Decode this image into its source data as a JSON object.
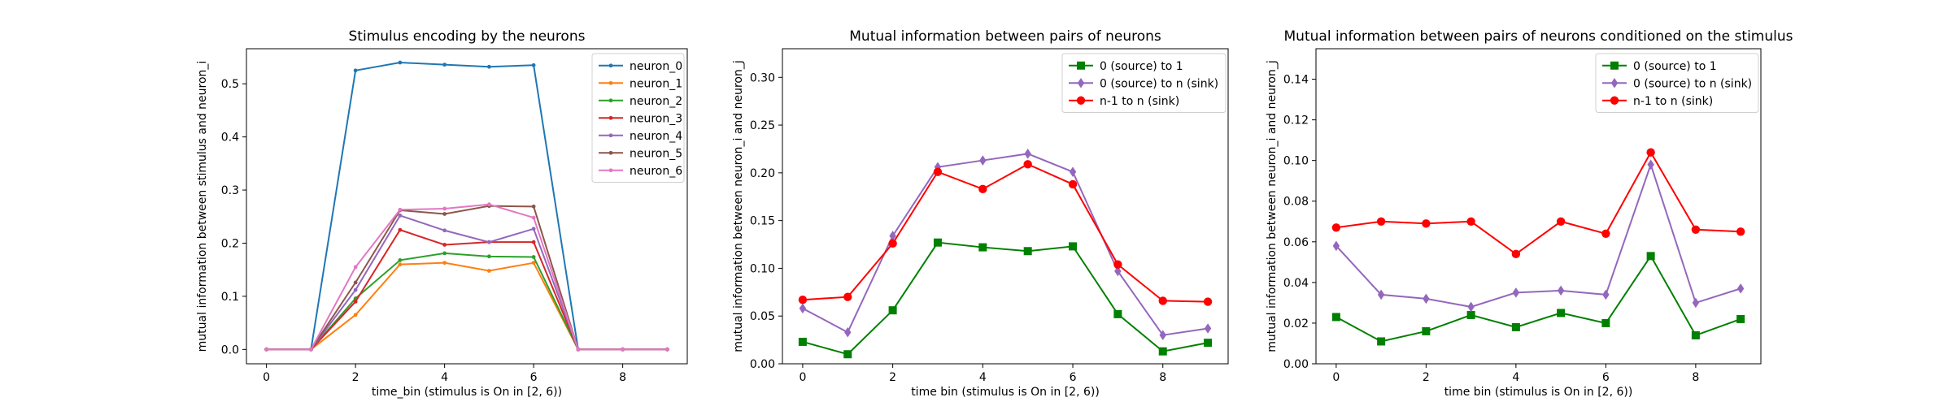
{
  "chart_data": [
    {
      "type": "line",
      "title": "Stimulus encoding by the neurons",
      "xlabel": "time_bin (stimulus is On in [2, 6))",
      "ylabel": "mutual information between stimulus and neuron_i",
      "xlim": [
        -0.45,
        9.45
      ],
      "ylim": [
        -0.027,
        0.566
      ],
      "xticks": [
        0,
        2,
        4,
        6,
        8
      ],
      "yticks": [
        0.0,
        0.1,
        0.2,
        0.3,
        0.4,
        0.5
      ],
      "ytick_labels": [
        "0.0",
        "0.1",
        "0.2",
        "0.3",
        "0.4",
        "0.5"
      ],
      "x": [
        0,
        1,
        2,
        3,
        4,
        5,
        6,
        7,
        8,
        9
      ],
      "legend_position": "top-right",
      "series": [
        {
          "name": "neuron_0",
          "color": "#1f77b4",
          "marker": "dot",
          "values": [
            0.0,
            0.0,
            0.525,
            0.54,
            0.536,
            0.532,
            0.535,
            0.0,
            0.0,
            0.0
          ]
        },
        {
          "name": "neuron_1",
          "color": "#ff7f0e",
          "marker": "dot",
          "values": [
            0.0,
            0.0,
            0.065,
            0.16,
            0.163,
            0.148,
            0.163,
            0.0,
            0.0,
            0.0
          ]
        },
        {
          "name": "neuron_2",
          "color": "#2ca02c",
          "marker": "dot",
          "values": [
            0.0,
            0.0,
            0.096,
            0.168,
            0.181,
            0.175,
            0.174,
            0.0,
            0.0,
            0.0
          ]
        },
        {
          "name": "neuron_3",
          "color": "#d62728",
          "marker": "dot",
          "values": [
            0.0,
            0.0,
            0.09,
            0.225,
            0.197,
            0.202,
            0.202,
            0.0,
            0.0,
            0.0
          ]
        },
        {
          "name": "neuron_4",
          "color": "#9467bd",
          "marker": "dot",
          "values": [
            0.0,
            0.0,
            0.112,
            0.252,
            0.224,
            0.202,
            0.227,
            0.0,
            0.0,
            0.0
          ]
        },
        {
          "name": "neuron_5",
          "color": "#8c564b",
          "marker": "dot",
          "values": [
            0.0,
            0.0,
            0.126,
            0.262,
            0.255,
            0.27,
            0.269,
            0.0,
            0.0,
            0.0
          ]
        },
        {
          "name": "neuron_6",
          "color": "#e377c2",
          "marker": "dot",
          "values": [
            0.0,
            0.0,
            0.155,
            0.263,
            0.265,
            0.273,
            0.248,
            0.0,
            0.0,
            0.0
          ]
        }
      ]
    },
    {
      "type": "line",
      "title": "Mutual information between pairs of neurons",
      "xlabel": "time bin (stimulus is On in [2, 6))",
      "ylabel": "mutual information between neuron_i and neuron_j",
      "xlim": [
        -0.45,
        9.45
      ],
      "ylim": [
        0.0,
        0.33
      ],
      "xticks": [
        0,
        2,
        4,
        6,
        8
      ],
      "yticks": [
        0.0,
        0.05,
        0.1,
        0.15,
        0.2,
        0.25,
        0.3
      ],
      "ytick_labels": [
        "0.00",
        "0.05",
        "0.10",
        "0.15",
        "0.20",
        "0.25",
        "0.30"
      ],
      "x": [
        0,
        1,
        2,
        3,
        4,
        5,
        6,
        7,
        8,
        9
      ],
      "legend_position": "top-right",
      "series": [
        {
          "name": "0 (source) to 1",
          "color": "#008000",
          "marker": "square",
          "values": [
            0.023,
            0.01,
            0.056,
            0.127,
            0.122,
            0.118,
            0.123,
            0.052,
            0.013,
            0.022
          ]
        },
        {
          "name": "0 (source) to n (sink)",
          "color": "#9467bd",
          "marker": "diamond",
          "values": [
            0.058,
            0.033,
            0.134,
            0.206,
            0.213,
            0.22,
            0.201,
            0.097,
            0.03,
            0.037
          ]
        },
        {
          "name": "n-1 to n (sink)",
          "color": "#ff0000",
          "marker": "circle",
          "values": [
            0.067,
            0.07,
            0.126,
            0.201,
            0.183,
            0.209,
            0.188,
            0.104,
            0.066,
            0.065
          ]
        }
      ]
    },
    {
      "type": "line",
      "title": "Mutual information between pairs of neurons conditioned on the stimulus",
      "xlabel": "time bin (stimulus is On in [2, 6))",
      "ylabel": "mutual information between neuron_i and neuron_j",
      "xlim": [
        -0.45,
        9.45
      ],
      "ylim": [
        0.0,
        0.155
      ],
      "xticks": [
        0,
        2,
        4,
        6,
        8
      ],
      "yticks": [
        0.0,
        0.02,
        0.04,
        0.06,
        0.08,
        0.1,
        0.12,
        0.14
      ],
      "ytick_labels": [
        "0.00",
        "0.02",
        "0.04",
        "0.06",
        "0.08",
        "0.10",
        "0.12",
        "0.14"
      ],
      "x": [
        0,
        1,
        2,
        3,
        4,
        5,
        6,
        7,
        8,
        9
      ],
      "legend_position": "top-right",
      "series": [
        {
          "name": "0 (source) to 1",
          "color": "#008000",
          "marker": "square",
          "values": [
            0.023,
            0.011,
            0.016,
            0.024,
            0.018,
            0.025,
            0.02,
            0.053,
            0.014,
            0.022
          ]
        },
        {
          "name": "0 (source) to n (sink)",
          "color": "#9467bd",
          "marker": "diamond",
          "values": [
            0.058,
            0.034,
            0.032,
            0.028,
            0.035,
            0.036,
            0.034,
            0.098,
            0.03,
            0.037
          ]
        },
        {
          "name": "n-1 to n (sink)",
          "color": "#ff0000",
          "marker": "circle",
          "values": [
            0.067,
            0.07,
            0.069,
            0.07,
            0.054,
            0.07,
            0.064,
            0.104,
            0.066,
            0.065
          ]
        }
      ]
    }
  ]
}
